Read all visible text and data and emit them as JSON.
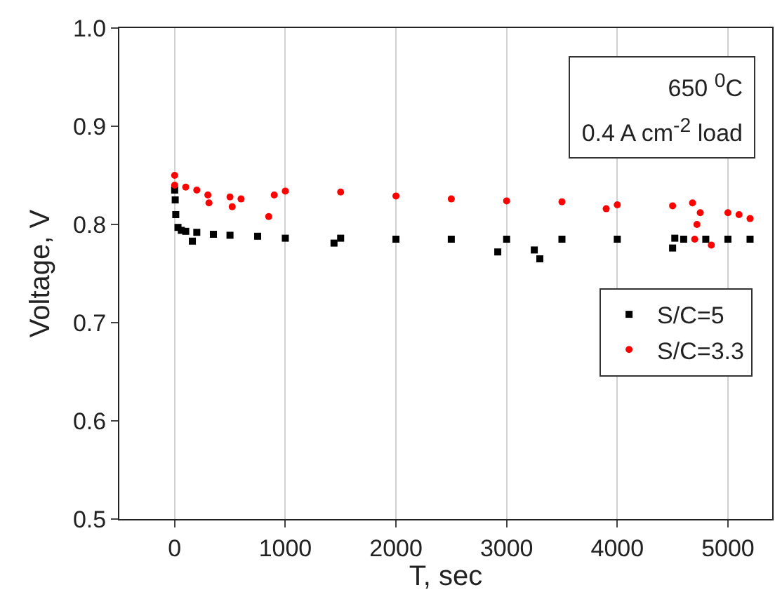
{
  "chart_data": {
    "type": "scatter",
    "xlabel": "T, sec",
    "ylabel": "Voltage, V",
    "annotations": [
      "650 $^{0}$C",
      "0.4 A cm$^{-2}$ load"
    ],
    "xlim": [
      -500,
      5400
    ],
    "xticks": [
      0,
      1000,
      2000,
      3000,
      4000,
      5000
    ],
    "ylim": [
      0.5,
      1.0
    ],
    "yticks": [
      {
        "value": 0.5,
        "label": "0.5"
      },
      {
        "value": 0.6,
        "label": "0.6"
      },
      {
        "value": 0.7,
        "label": "0.7"
      },
      {
        "value": 0.8,
        "label": "0.8"
      },
      {
        "value": 0.9,
        "label": "0.9"
      },
      {
        "value": 1.0,
        "label": "1.0"
      }
    ],
    "grid": "x",
    "legend": "right",
    "series": [
      {
        "name": "S/C=5",
        "color": "#000000",
        "marker": "square",
        "x": [
          0,
          5,
          10,
          30,
          60,
          100,
          160,
          200,
          350,
          500,
          750,
          1000,
          1440,
          1500,
          2000,
          2500,
          2920,
          3000,
          3250,
          3300,
          3500,
          4000,
          4500,
          4520,
          4600,
          4800,
          5000,
          5200
        ],
        "values": [
          0.835,
          0.825,
          0.81,
          0.797,
          0.794,
          0.793,
          0.783,
          0.792,
          0.79,
          0.789,
          0.788,
          0.786,
          0.781,
          0.786,
          0.785,
          0.785,
          0.772,
          0.785,
          0.774,
          0.765,
          0.785,
          0.785,
          0.776,
          0.786,
          0.785,
          0.785,
          0.785,
          0.785
        ]
      },
      {
        "name": "S/C=3.3",
        "color": "#ff0000",
        "marker": "circle",
        "x": [
          0,
          0,
          100,
          200,
          300,
          310,
          500,
          520,
          600,
          850,
          900,
          1000,
          1500,
          2000,
          2500,
          3000,
          3500,
          3900,
          4000,
          4500,
          4680,
          4700,
          4720,
          4750,
          4850,
          5000,
          5100,
          5200
        ],
        "values": [
          0.85,
          0.84,
          0.838,
          0.835,
          0.83,
          0.822,
          0.828,
          0.818,
          0.826,
          0.808,
          0.83,
          0.834,
          0.833,
          0.829,
          0.826,
          0.824,
          0.823,
          0.816,
          0.82,
          0.819,
          0.822,
          0.785,
          0.8,
          0.812,
          0.779,
          0.812,
          0.81,
          0.806
        ]
      }
    ]
  }
}
